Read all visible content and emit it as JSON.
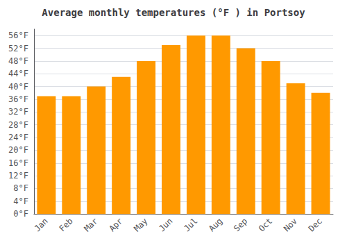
{
  "chart_data": {
    "type": "bar",
    "title": "Average monthly temperatures (°F ) in Portsoy",
    "categories": [
      "Jan",
      "Feb",
      "Mar",
      "Apr",
      "May",
      "Jun",
      "Jul",
      "Aug",
      "Sep",
      "Oct",
      "Nov",
      "Dec"
    ],
    "values": [
      37,
      37,
      40,
      43,
      48,
      53,
      56,
      56,
      52,
      48,
      41,
      38
    ],
    "color": "#FF9900",
    "ylim": [
      0,
      58
    ],
    "yticks": [
      {
        "value": 0,
        "label": "0°F"
      },
      {
        "value": 4,
        "label": "4°F"
      },
      {
        "value": 8,
        "label": "8°F"
      },
      {
        "value": 12,
        "label": "12°F"
      },
      {
        "value": 16,
        "label": "16°F"
      },
      {
        "value": 20,
        "label": "20°F"
      },
      {
        "value": 24,
        "label": "24°F"
      },
      {
        "value": 28,
        "label": "28°F"
      },
      {
        "value": 32,
        "label": "32°F"
      },
      {
        "value": 36,
        "label": "36°F"
      },
      {
        "value": 40,
        "label": "40°F"
      },
      {
        "value": 44,
        "label": "44°F"
      },
      {
        "value": 48,
        "label": "48°F"
      },
      {
        "value": 52,
        "label": "52°F"
      },
      {
        "value": 56,
        "label": "56°F"
      }
    ],
    "grid": true
  }
}
